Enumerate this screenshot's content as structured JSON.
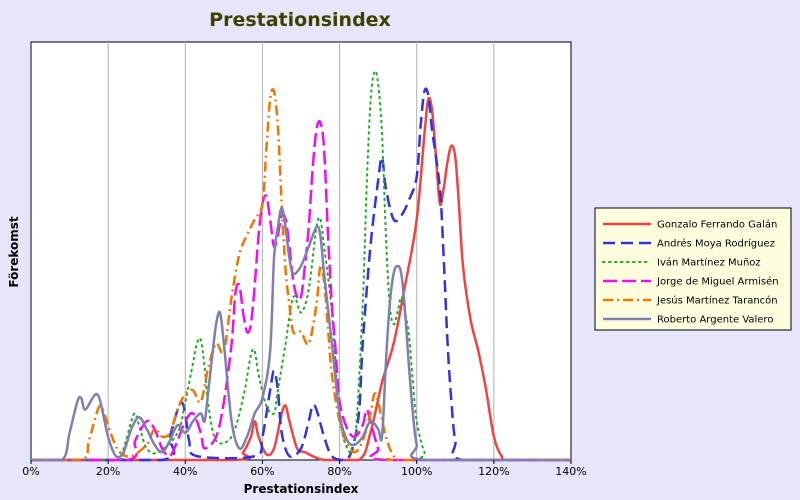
{
  "chart_data": {
    "type": "line",
    "title": "Prestationsindex",
    "xlabel": "Prestationsindex",
    "ylabel": "Förekomst",
    "xlim": [
      0,
      140
    ],
    "ylim": [
      0,
      1
    ],
    "x_ticks": [
      "0%",
      "20%",
      "40%",
      "60%",
      "80%",
      "100%",
      "120%",
      "140%"
    ],
    "grid": "vertical",
    "legend_position": "right",
    "series": [
      {
        "name": "Gonzalo Ferrando Galán",
        "color": "#ee4444",
        "dash": "solid",
        "points": [
          [
            0,
            0
          ],
          [
            52,
            0
          ],
          [
            55,
            0.02
          ],
          [
            57,
            0.06
          ],
          [
            58,
            0.1
          ],
          [
            59,
            0.06
          ],
          [
            61,
            0.015
          ],
          [
            63,
            0.03
          ],
          [
            65,
            0.12
          ],
          [
            66,
            0.14
          ],
          [
            67,
            0.1
          ],
          [
            69,
            0.03
          ],
          [
            71,
            0.02
          ],
          [
            76,
            0
          ],
          [
            85,
            0
          ],
          [
            88,
            0.07
          ],
          [
            91,
            0.2
          ],
          [
            94,
            0.3
          ],
          [
            97,
            0.45
          ],
          [
            100,
            0.62
          ],
          [
            102,
            0.84
          ],
          [
            103,
            0.93
          ],
          [
            104,
            0.9
          ],
          [
            105,
            0.78
          ],
          [
            106,
            0.66
          ],
          [
            107,
            0.7
          ],
          [
            108,
            0.77
          ],
          [
            109,
            0.81
          ],
          [
            110,
            0.78
          ],
          [
            111,
            0.65
          ],
          [
            112,
            0.5
          ],
          [
            114,
            0.36
          ],
          [
            116,
            0.28
          ],
          [
            118,
            0.18
          ],
          [
            120,
            0.06
          ],
          [
            122,
            0.01
          ],
          [
            124,
            0
          ],
          [
            140,
            0
          ]
        ]
      },
      {
        "name": "Andrés Moya Rodríguez",
        "color": "#3333dd",
        "dash": "long",
        "points": [
          [
            0,
            0
          ],
          [
            34,
            0
          ],
          [
            36,
            0.06
          ],
          [
            38,
            0.13
          ],
          [
            39,
            0.15
          ],
          [
            40,
            0.12
          ],
          [
            41,
            0.05
          ],
          [
            43,
            0.01
          ],
          [
            58,
            0.01
          ],
          [
            60,
            0.06
          ],
          [
            62,
            0.18
          ],
          [
            63,
            0.23
          ],
          [
            64,
            0.18
          ],
          [
            65,
            0.07
          ],
          [
            67,
            0.01
          ],
          [
            70,
            0.03
          ],
          [
            72,
            0.1
          ],
          [
            73,
            0.14
          ],
          [
            74,
            0.13
          ],
          [
            76,
            0.06
          ],
          [
            78,
            0.01
          ],
          [
            81,
            0
          ],
          [
            83,
            0.02
          ],
          [
            85,
            0.12
          ],
          [
            86,
            0.3
          ],
          [
            88,
            0.55
          ],
          [
            90,
            0.72
          ],
          [
            91,
            0.78
          ],
          [
            92,
            0.7
          ],
          [
            94,
            0.62
          ],
          [
            96,
            0.63
          ],
          [
            98,
            0.67
          ],
          [
            100,
            0.73
          ],
          [
            101,
            0.86
          ],
          [
            102,
            0.95
          ],
          [
            103,
            0.94
          ],
          [
            104,
            0.85
          ],
          [
            106,
            0.7
          ],
          [
            107,
            0.52
          ],
          [
            108,
            0.3
          ],
          [
            109,
            0.15
          ],
          [
            110,
            0.05
          ],
          [
            112,
            0
          ],
          [
            140,
            0
          ]
        ]
      },
      {
        "name": "Iván Martínez Muñoz",
        "color": "#22aa22",
        "dash": "dotted",
        "points": [
          [
            0,
            0
          ],
          [
            22,
            0
          ],
          [
            24,
            0.03
          ],
          [
            26,
            0.1
          ],
          [
            27,
            0.12
          ],
          [
            28,
            0.09
          ],
          [
            30,
            0.03
          ],
          [
            33,
            0.02
          ],
          [
            38,
            0.07
          ],
          [
            40,
            0.15
          ],
          [
            42,
            0.25
          ],
          [
            43,
            0.3
          ],
          [
            44,
            0.31
          ],
          [
            45,
            0.24
          ],
          [
            46,
            0.14
          ],
          [
            48,
            0.05
          ],
          [
            52,
            0.06
          ],
          [
            55,
            0.16
          ],
          [
            57,
            0.27
          ],
          [
            58,
            0.28
          ],
          [
            59,
            0.22
          ],
          [
            61,
            0.14
          ],
          [
            63,
            0.12
          ],
          [
            64,
            0.18
          ],
          [
            66,
            0.3
          ],
          [
            68,
            0.42
          ],
          [
            70,
            0.38
          ],
          [
            72,
            0.44
          ],
          [
            74,
            0.6
          ],
          [
            75,
            0.62
          ],
          [
            76,
            0.55
          ],
          [
            78,
            0.38
          ],
          [
            80,
            0.12
          ],
          [
            82,
            0.03
          ],
          [
            84,
            0.05
          ],
          [
            86,
            0.4
          ],
          [
            87,
            0.7
          ],
          [
            88,
            0.92
          ],
          [
            89,
            1.0
          ],
          [
            90,
            0.97
          ],
          [
            91,
            0.84
          ],
          [
            92,
            0.58
          ],
          [
            93,
            0.4
          ],
          [
            94,
            0.35
          ],
          [
            95,
            0.38
          ],
          [
            96,
            0.42
          ],
          [
            97,
            0.38
          ],
          [
            98,
            0.32
          ],
          [
            99,
            0.2
          ],
          [
            100,
            0.1
          ],
          [
            102,
            0.02
          ],
          [
            104,
            0
          ],
          [
            140,
            0
          ]
        ]
      },
      {
        "name": "Jorge de Miguel Armisén",
        "color": "#ee11ee",
        "dash": "dashdash",
        "points": [
          [
            0,
            0
          ],
          [
            25,
            0
          ],
          [
            27,
            0.05
          ],
          [
            30,
            0.1
          ],
          [
            32,
            0.08
          ],
          [
            34,
            0.03
          ],
          [
            36,
            0.01
          ],
          [
            38,
            0.05
          ],
          [
            40,
            0.1
          ],
          [
            42,
            0.12
          ],
          [
            44,
            0.07
          ],
          [
            45,
            0.03
          ],
          [
            48,
            0.06
          ],
          [
            50,
            0.15
          ],
          [
            52,
            0.3
          ],
          [
            53,
            0.43
          ],
          [
            54,
            0.45
          ],
          [
            55,
            0.38
          ],
          [
            56,
            0.33
          ],
          [
            57,
            0.35
          ],
          [
            58,
            0.45
          ],
          [
            59,
            0.58
          ],
          [
            60,
            0.66
          ],
          [
            61,
            0.68
          ],
          [
            62,
            0.62
          ],
          [
            63,
            0.55
          ],
          [
            64,
            0.58
          ],
          [
            65,
            0.63
          ],
          [
            66,
            0.62
          ],
          [
            67,
            0.55
          ],
          [
            68,
            0.46
          ],
          [
            69,
            0.42
          ],
          [
            70,
            0.42
          ],
          [
            71,
            0.5
          ],
          [
            72,
            0.6
          ],
          [
            73,
            0.75
          ],
          [
            74,
            0.85
          ],
          [
            75,
            0.87
          ],
          [
            76,
            0.8
          ],
          [
            77,
            0.58
          ],
          [
            78,
            0.4
          ],
          [
            79,
            0.28
          ],
          [
            80,
            0.15
          ],
          [
            82,
            0.08
          ],
          [
            84,
            0.06
          ],
          [
            86,
            0.09
          ],
          [
            87,
            0.13
          ],
          [
            88,
            0.1
          ],
          [
            90,
            0.03
          ],
          [
            92,
            0
          ],
          [
            140,
            0
          ]
        ]
      },
      {
        "name": "Jesús Martínez Tarancón",
        "color": "#ee7700",
        "dash": "dashdot",
        "points": [
          [
            0,
            0
          ],
          [
            13,
            0
          ],
          [
            15,
            0.05
          ],
          [
            17,
            0.12
          ],
          [
            18,
            0.14
          ],
          [
            19,
            0.12
          ],
          [
            21,
            0.06
          ],
          [
            23,
            0.02
          ],
          [
            26,
            0.01
          ],
          [
            30,
            0.04
          ],
          [
            32,
            0.08
          ],
          [
            34,
            0.06
          ],
          [
            36,
            0.07
          ],
          [
            38,
            0.13
          ],
          [
            40,
            0.17
          ],
          [
            42,
            0.18
          ],
          [
            44,
            0.15
          ],
          [
            46,
            0.24
          ],
          [
            48,
            0.3
          ],
          [
            50,
            0.28
          ],
          [
            52,
            0.42
          ],
          [
            54,
            0.53
          ],
          [
            56,
            0.58
          ],
          [
            58,
            0.62
          ],
          [
            60,
            0.66
          ],
          [
            61,
            0.8
          ],
          [
            62,
            0.93
          ],
          [
            63,
            0.95
          ],
          [
            64,
            0.86
          ],
          [
            65,
            0.66
          ],
          [
            66,
            0.49
          ],
          [
            67,
            0.4
          ],
          [
            68,
            0.33
          ],
          [
            70,
            0.33
          ],
          [
            72,
            0.3
          ],
          [
            74,
            0.4
          ],
          [
            75,
            0.5
          ],
          [
            76,
            0.46
          ],
          [
            77,
            0.34
          ],
          [
            78,
            0.22
          ],
          [
            80,
            0.1
          ],
          [
            82,
            0.04
          ],
          [
            84,
            0.02
          ],
          [
            86,
            0.05
          ],
          [
            88,
            0.12
          ],
          [
            89,
            0.17
          ],
          [
            90,
            0.15
          ],
          [
            92,
            0.06
          ],
          [
            94,
            0.01
          ],
          [
            96,
            0
          ],
          [
            140,
            0
          ]
        ]
      },
      {
        "name": "Roberto Argente Valero",
        "color": "#8080b0",
        "dash": "solid",
        "points": [
          [
            0,
            0
          ],
          [
            8,
            0
          ],
          [
            10,
            0.07
          ],
          [
            12,
            0.15
          ],
          [
            13,
            0.16
          ],
          [
            14,
            0.13
          ],
          [
            16,
            0.16
          ],
          [
            17,
            0.17
          ],
          [
            18,
            0.15
          ],
          [
            20,
            0.06
          ],
          [
            22,
            0.01
          ],
          [
            24,
            0.02
          ],
          [
            26,
            0.08
          ],
          [
            28,
            0.11
          ],
          [
            30,
            0.08
          ],
          [
            32,
            0.04
          ],
          [
            34,
            0.02
          ],
          [
            36,
            0.05
          ],
          [
            38,
            0.09
          ],
          [
            40,
            0.07
          ],
          [
            42,
            0.1
          ],
          [
            44,
            0.12
          ],
          [
            45,
            0.1
          ],
          [
            46,
            0.18
          ],
          [
            47,
            0.27
          ],
          [
            48,
            0.35
          ],
          [
            49,
            0.38
          ],
          [
            50,
            0.3
          ],
          [
            52,
            0.1
          ],
          [
            54,
            0.03
          ],
          [
            56,
            0.06
          ],
          [
            58,
            0.12
          ],
          [
            60,
            0.16
          ],
          [
            62,
            0.28
          ],
          [
            63,
            0.52
          ],
          [
            64,
            0.6
          ],
          [
            65,
            0.65
          ],
          [
            66,
            0.6
          ],
          [
            67,
            0.52
          ],
          [
            68,
            0.48
          ],
          [
            70,
            0.5
          ],
          [
            72,
            0.55
          ],
          [
            74,
            0.6
          ],
          [
            75,
            0.58
          ],
          [
            76,
            0.48
          ],
          [
            78,
            0.3
          ],
          [
            80,
            0.12
          ],
          [
            82,
            0.05
          ],
          [
            84,
            0.04
          ],
          [
            86,
            0.06
          ],
          [
            88,
            0.1
          ],
          [
            90,
            0.08
          ],
          [
            91,
            0.06
          ],
          [
            92,
            0.25
          ],
          [
            93,
            0.4
          ],
          [
            94,
            0.48
          ],
          [
            95,
            0.5
          ],
          [
            96,
            0.48
          ],
          [
            97,
            0.38
          ],
          [
            98,
            0.24
          ],
          [
            99,
            0.12
          ],
          [
            100,
            0.04
          ],
          [
            102,
            0
          ],
          [
            140,
            0
          ]
        ]
      }
    ]
  }
}
